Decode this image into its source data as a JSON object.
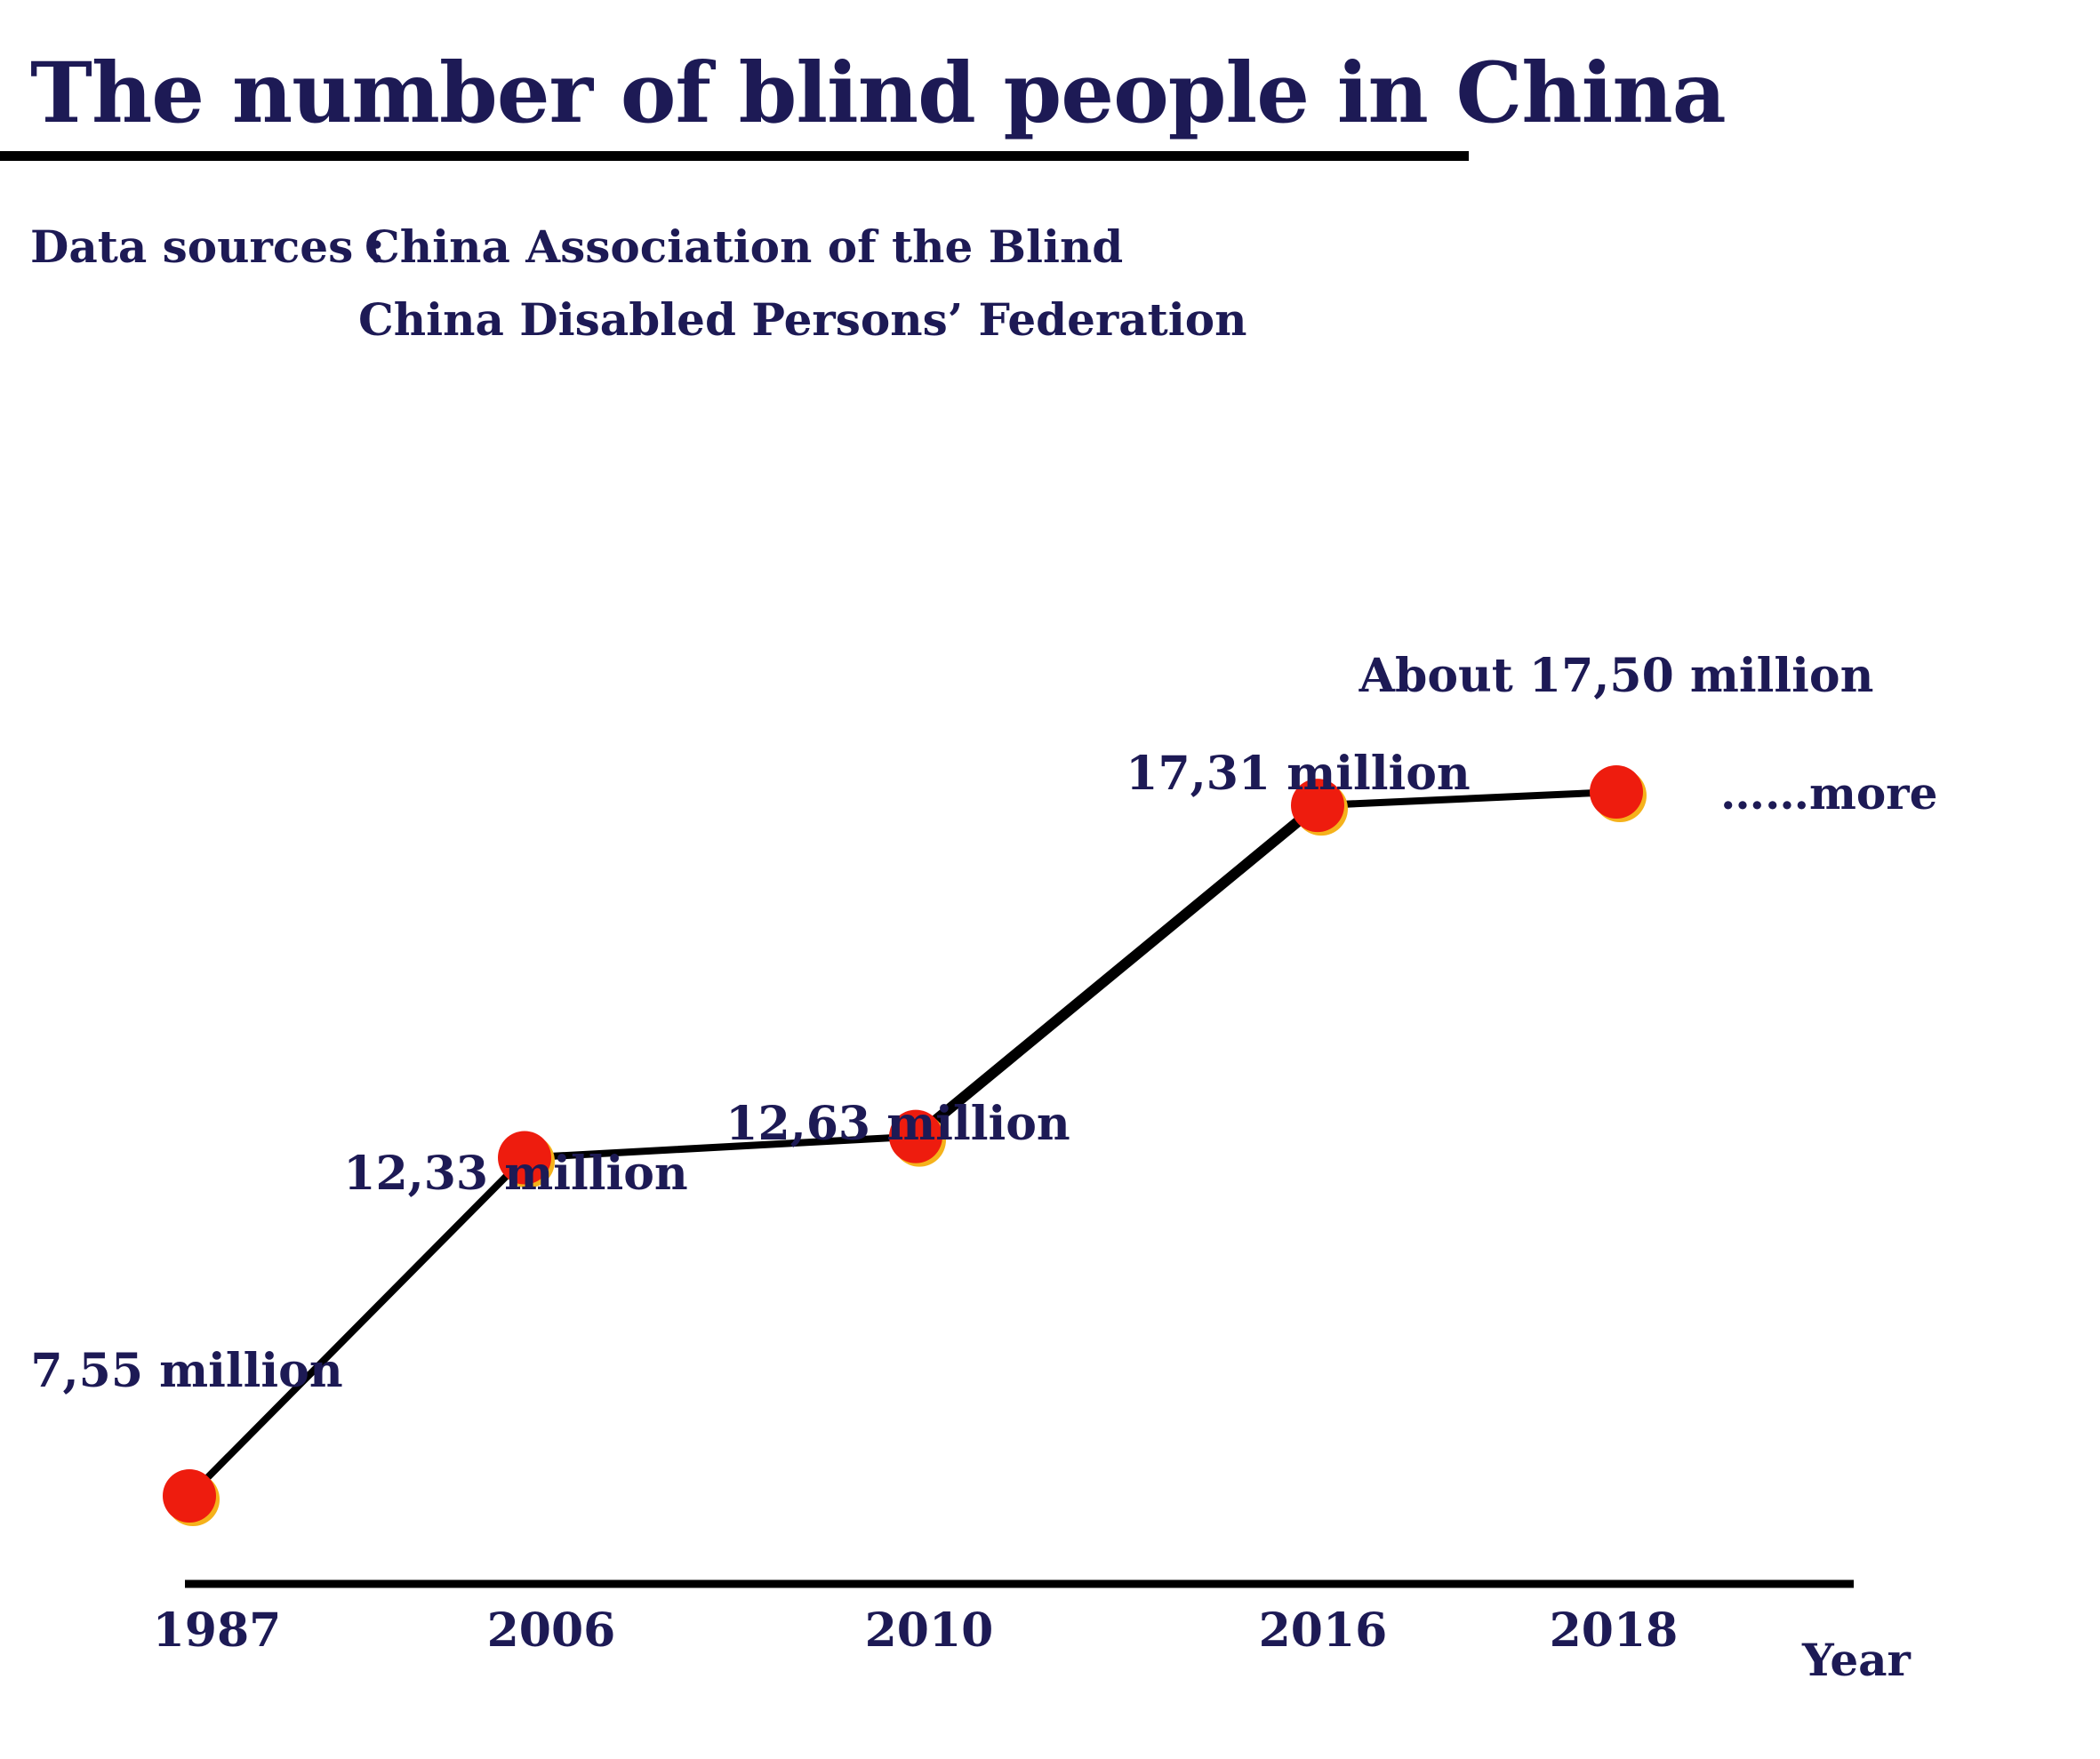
{
  "title": "The number of blind people in China",
  "sources": {
    "label": "Data sources :",
    "line1": "China Association of the Blind",
    "line2": "China Disabled Persons’ Federation"
  },
  "chart_data": {
    "type": "line",
    "title": "The number of blind people in China",
    "xlabel": "Year",
    "ylabel": "",
    "categories": [
      "1987",
      "2006",
      "2010",
      "2016",
      "2018"
    ],
    "series": [
      {
        "values": [
          7.55,
          12.33,
          12.63,
          17.31,
          17.5
        ],
        "data_labels": [
          "7,55 million",
          "12,33 million",
          "12,63 million",
          "17,31 million",
          "About 17,50 million"
        ]
      }
    ],
    "continuation_label": "……more",
    "marker_color": "#ee1c0e",
    "marker_edge_color": "#f5b21b",
    "line_color": "#000000",
    "text_color": "#1d1a55",
    "grid": false,
    "legend": "none"
  }
}
